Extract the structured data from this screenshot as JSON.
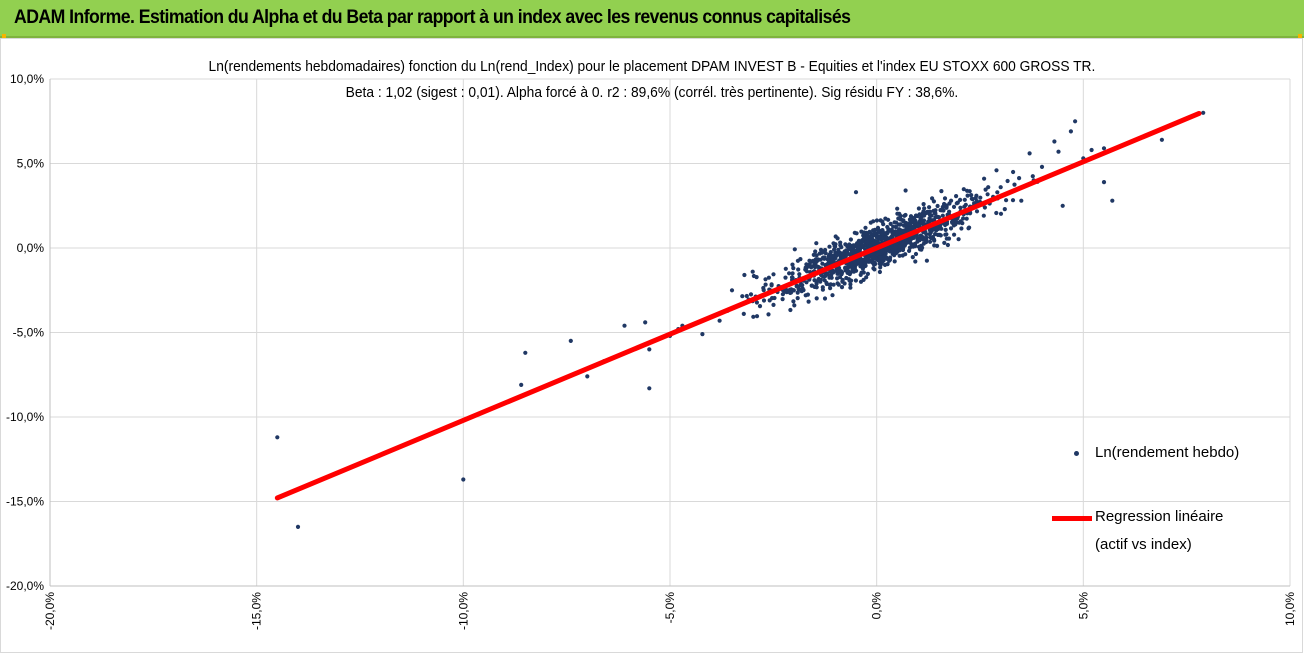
{
  "header": {
    "title": "ADAM Informe. Estimation du Alpha et du Beta par rapport à un index avec les revenus connus capitalisés"
  },
  "colors": {
    "header_bg": "#92d050",
    "points": "#203864",
    "regression": "#ff0000",
    "grid": "#d9d9d9"
  },
  "chart_data": {
    "type": "scatter",
    "title": "Ln(rendements hebdomadaires) fonction du Ln(rend_Index) pour le placement DPAM INVEST B - Equities  et l'index EU STOXX 600 GROSS TR.",
    "subtitle": "Beta : 1,02 (sigest : 0,01).  Alpha forcé à 0. r2 : 89,6% (corrél. très pertinente). Sig résidu FY : 38,6%.",
    "xlim": [
      -0.2,
      0.1
    ],
    "ylim": [
      -0.2,
      0.1
    ],
    "x_ticks": [
      "-20,0%",
      "-15,0%",
      "-10,0%",
      "-5,0%",
      "0,0%",
      "5,0%",
      "10,0%"
    ],
    "y_ticks": [
      "10,0%",
      "5,0%",
      "0,0%",
      "-5,0%",
      "-10,0%",
      "-15,0%",
      "-20,0%"
    ],
    "grid": true,
    "legend_position": "right",
    "series": [
      {
        "name": "Ln(rendement hebdo)",
        "kind": "points",
        "outliers": [
          [
            -0.145,
            -0.112
          ],
          [
            -0.14,
            -0.165
          ],
          [
            -0.1,
            -0.137
          ],
          [
            -0.085,
            -0.062
          ],
          [
            -0.086,
            -0.081
          ],
          [
            -0.074,
            -0.055
          ],
          [
            -0.066,
            -0.067
          ],
          [
            -0.061,
            -0.046
          ],
          [
            -0.055,
            -0.083
          ],
          [
            -0.056,
            -0.044
          ],
          [
            -0.055,
            -0.06
          ],
          [
            -0.05,
            -0.052
          ],
          [
            -0.048,
            -0.048
          ],
          [
            -0.047,
            -0.046
          ],
          [
            -0.07,
            -0.076
          ],
          [
            0.048,
            0.075
          ],
          [
            0.047,
            0.069
          ],
          [
            0.052,
            0.058
          ],
          [
            0.057,
            0.028
          ],
          [
            0.055,
            0.039
          ],
          [
            0.045,
            0.025
          ],
          [
            0.043,
            0.063
          ],
          [
            0.04,
            0.048
          ],
          [
            0.038,
            0.04
          ],
          [
            0.037,
            0.056
          ],
          [
            0.029,
            0.046
          ],
          [
            0.026,
            0.041
          ],
          [
            0.02,
            0.015
          ],
          [
            0.018,
            0.028
          ],
          [
            0.022,
            0.031
          ],
          [
            0.069,
            0.064
          ],
          [
            0.079,
            0.08
          ],
          [
            0.055,
            0.059
          ],
          [
            0.033,
            0.045
          ],
          [
            0.035,
            0.028
          ],
          [
            0.031,
            0.023
          ],
          [
            0.03,
            0.036
          ],
          [
            0.05,
            0.053
          ],
          [
            0.044,
            0.057
          ],
          [
            -0.005,
            0.033
          ],
          [
            0.007,
            0.034
          ],
          [
            -0.03,
            -0.014
          ],
          [
            -0.032,
            -0.016
          ],
          [
            -0.035,
            -0.025
          ],
          [
            -0.038,
            -0.043
          ]
        ],
        "cloud": {
          "count": 1150,
          "x_center": 0.001,
          "x_spread": 0.012,
          "beta": 1.02,
          "residual": 0.0065,
          "seed": 13
        }
      },
      {
        "name": "Regression linéaire (actif vs index)",
        "label_lines": [
          "Regression linéaire",
          "(actif vs index)"
        ],
        "kind": "line",
        "x": [
          -0.145,
          0.078
        ],
        "y": [
          -0.1479,
          0.0796
        ]
      }
    ]
  }
}
